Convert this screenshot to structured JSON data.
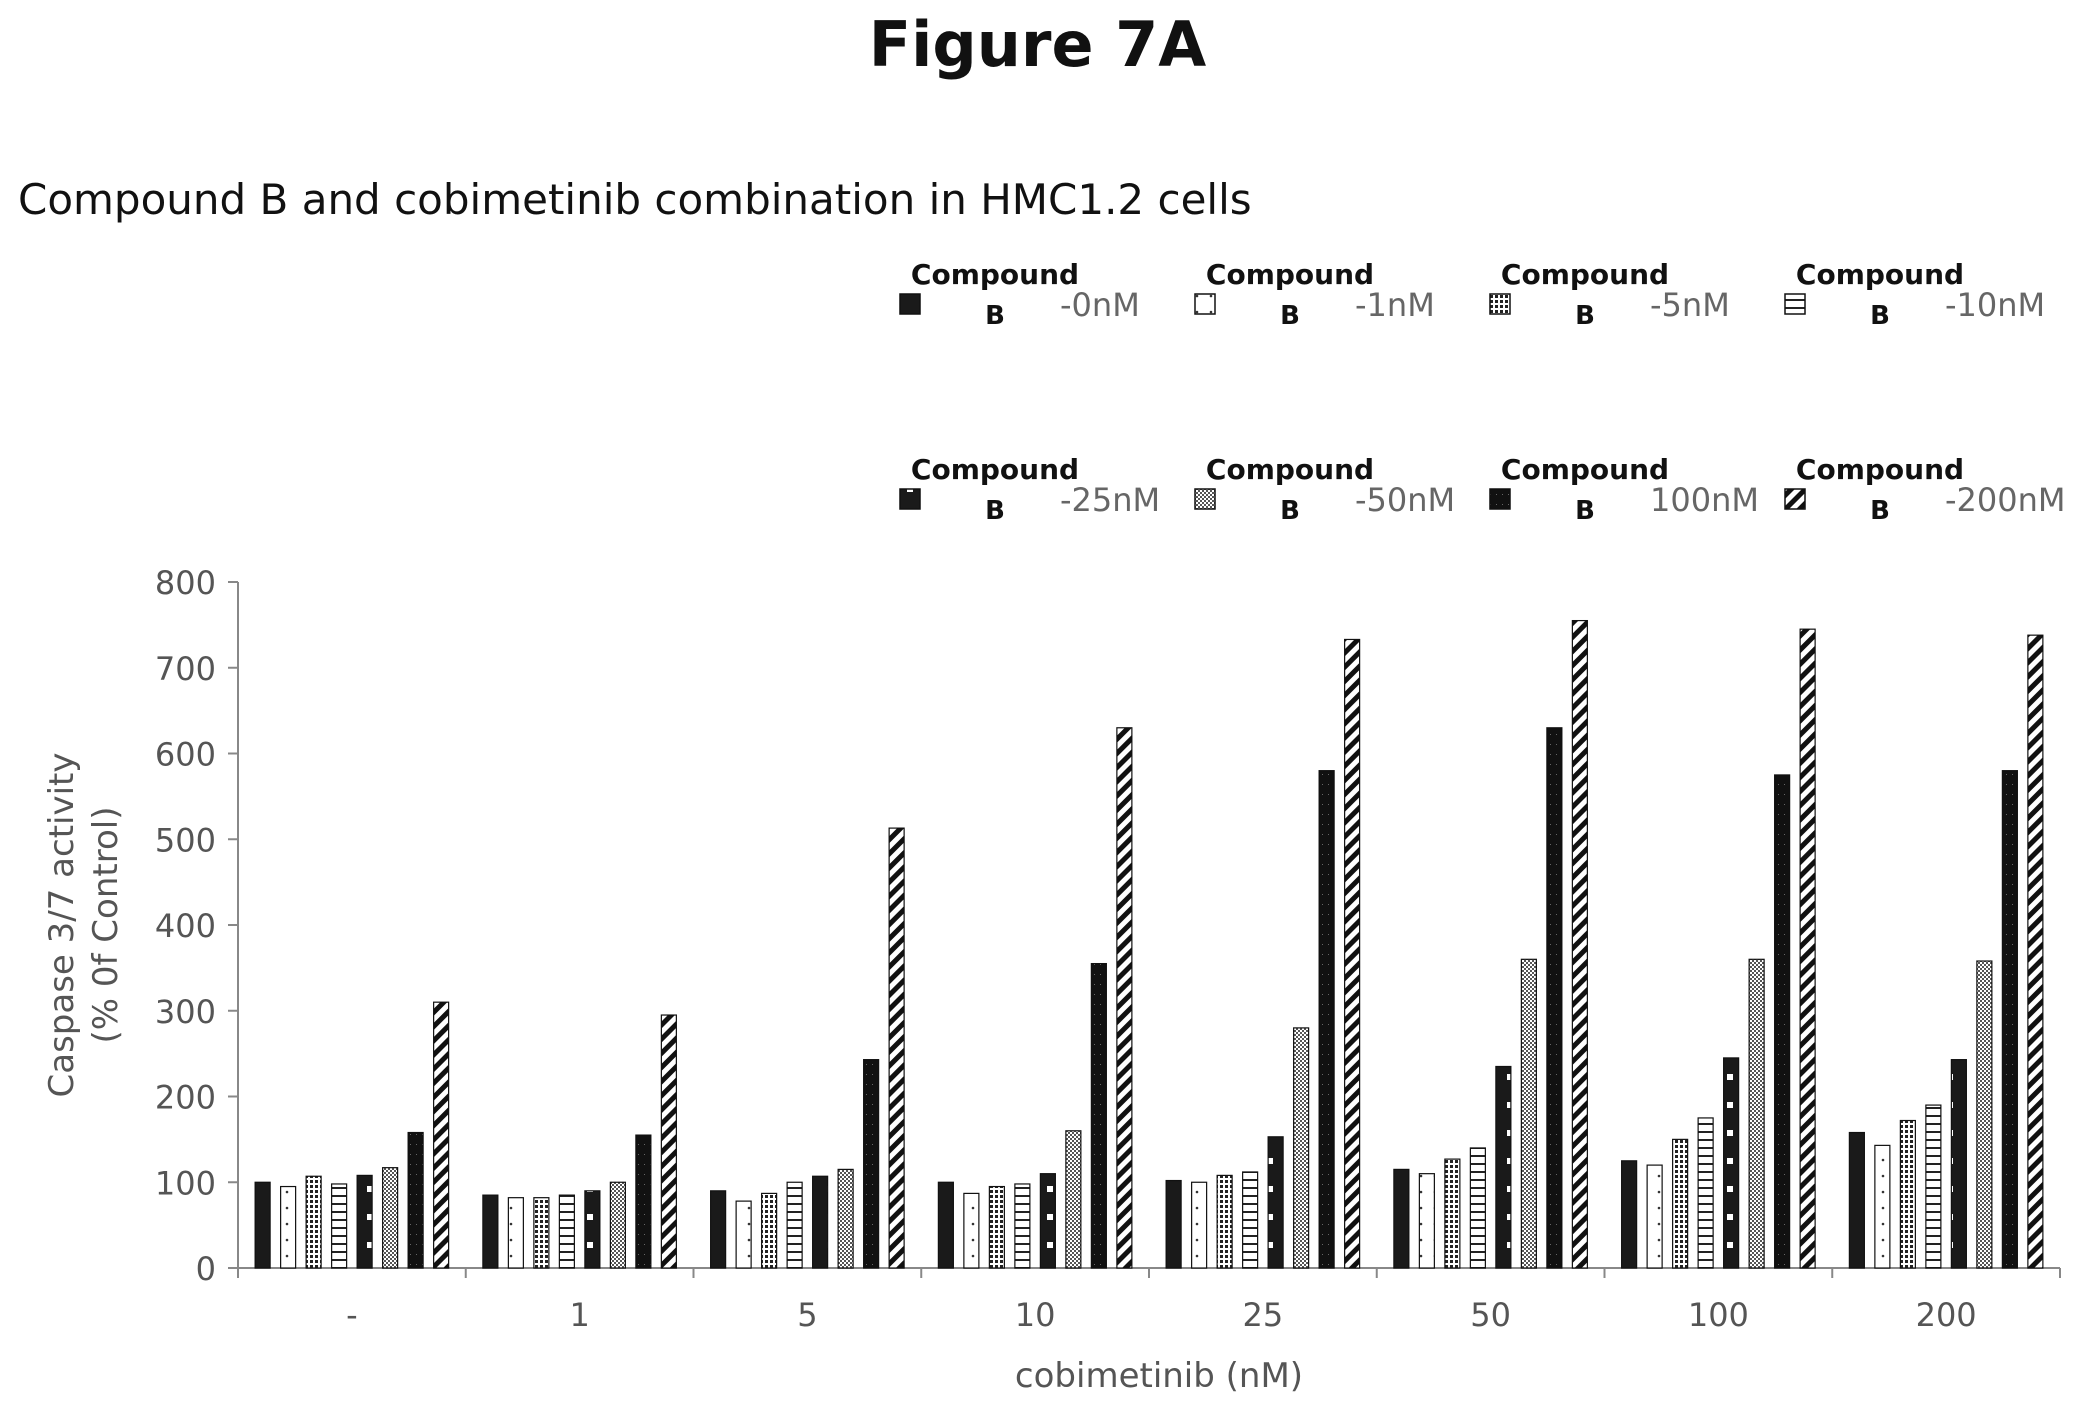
{
  "figure_title": "Figure 7A",
  "chart_data": {
    "type": "bar",
    "title": "Compound B and cobimetinib combination in HMC1.2 cells",
    "xlabel": "cobimetinib (nM)",
    "ylabel": [
      "Caspase 3/7 activity",
      "(% 0f Control)"
    ],
    "ylim": [
      0,
      800
    ],
    "yticks": [
      0,
      100,
      200,
      300,
      400,
      500,
      600,
      700,
      800
    ],
    "grid": false,
    "legend_position": "top-right",
    "categories": [
      "-",
      "1",
      "5",
      "10",
      "25",
      "50",
      "100",
      "200"
    ],
    "series": [
      {
        "name": "Compound B -0nM",
        "legend_word": "Compound",
        "legend_letter": "B",
        "legend_unit": "-0nM",
        "pattern": "solid",
        "values": [
          100,
          85,
          90,
          100,
          102,
          115,
          125,
          158
        ]
      },
      {
        "name": "Compound B -1nM",
        "legend_word": "Compound",
        "legend_letter": "B",
        "legend_unit": "-1nM",
        "pattern": "dots",
        "values": [
          95,
          82,
          78,
          87,
          100,
          110,
          120,
          143
        ]
      },
      {
        "name": "Compound B -5nM",
        "legend_word": "Compound",
        "legend_letter": "B",
        "legend_unit": "-5nM",
        "pattern": "grid",
        "values": [
          107,
          82,
          87,
          95,
          108,
          127,
          150,
          172
        ]
      },
      {
        "name": "Compound B -10nM",
        "legend_word": "Compound",
        "legend_letter": "B",
        "legend_unit": "-10nM",
        "pattern": "hlines",
        "values": [
          98,
          85,
          100,
          98,
          112,
          140,
          175,
          190
        ]
      },
      {
        "name": "Compound B -25nM",
        "legend_word": "Compound",
        "legend_letter": "B",
        "legend_unit": "-25nM",
        "pattern": "dark-dots",
        "values": [
          108,
          90,
          107,
          110,
          153,
          235,
          245,
          243
        ]
      },
      {
        "name": "Compound B -50nM",
        "legend_word": "Compound",
        "legend_letter": "B",
        "legend_unit": "-50nM",
        "pattern": "checker",
        "values": [
          117,
          100,
          115,
          160,
          280,
          360,
          360,
          358
        ]
      },
      {
        "name": "Compound B 100nM",
        "legend_word": "Compound",
        "legend_letter": "B",
        "legend_unit": "100nM",
        "pattern": "dark-speckle",
        "values": [
          158,
          155,
          243,
          355,
          580,
          630,
          575,
          580
        ]
      },
      {
        "name": "Compound B -200nM",
        "legend_word": "Compound",
        "legend_letter": "B",
        "legend_unit": "-200nM",
        "pattern": "diag",
        "values": [
          310,
          295,
          513,
          630,
          733,
          755,
          745,
          738
        ]
      }
    ]
  }
}
